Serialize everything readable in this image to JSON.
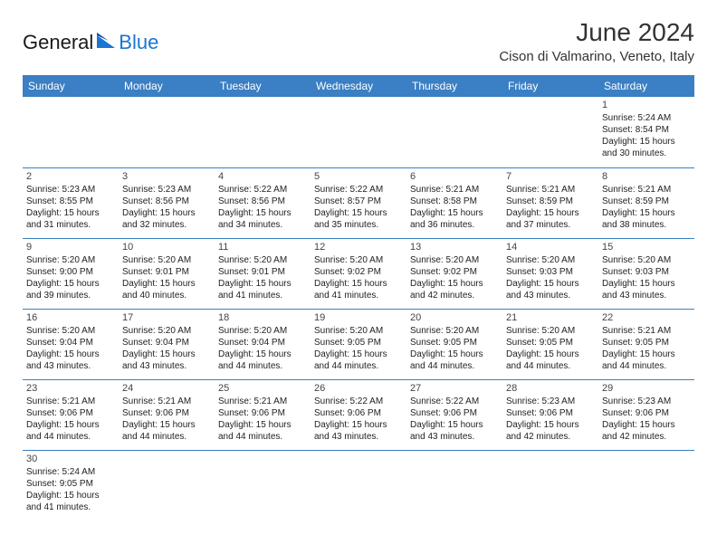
{
  "brand": {
    "name_part1": "General",
    "name_part2": "Blue",
    "color_text": "#1a1a1a",
    "color_blue": "#1976d2"
  },
  "header": {
    "title": "June 2024",
    "location": "Cison di Valmarino, Veneto, Italy"
  },
  "theme": {
    "header_bg": "#3b7fc4",
    "header_fg": "#ffffff",
    "border_color": "#3b7fc4",
    "body_bg": "#ffffff",
    "text_color": "#222222"
  },
  "daysOfWeek": [
    "Sunday",
    "Monday",
    "Tuesday",
    "Wednesday",
    "Thursday",
    "Friday",
    "Saturday"
  ],
  "calendar": {
    "type": "table",
    "columns": 7,
    "rows": 6,
    "cells": [
      [
        null,
        null,
        null,
        null,
        null,
        null,
        {
          "n": 1,
          "sr": "5:24 AM",
          "ss": "8:54 PM",
          "dh": 15,
          "dm": 30
        }
      ],
      [
        {
          "n": 2,
          "sr": "5:23 AM",
          "ss": "8:55 PM",
          "dh": 15,
          "dm": 31
        },
        {
          "n": 3,
          "sr": "5:23 AM",
          "ss": "8:56 PM",
          "dh": 15,
          "dm": 32
        },
        {
          "n": 4,
          "sr": "5:22 AM",
          "ss": "8:56 PM",
          "dh": 15,
          "dm": 34
        },
        {
          "n": 5,
          "sr": "5:22 AM",
          "ss": "8:57 PM",
          "dh": 15,
          "dm": 35
        },
        {
          "n": 6,
          "sr": "5:21 AM",
          "ss": "8:58 PM",
          "dh": 15,
          "dm": 36
        },
        {
          "n": 7,
          "sr": "5:21 AM",
          "ss": "8:59 PM",
          "dh": 15,
          "dm": 37
        },
        {
          "n": 8,
          "sr": "5:21 AM",
          "ss": "8:59 PM",
          "dh": 15,
          "dm": 38
        }
      ],
      [
        {
          "n": 9,
          "sr": "5:20 AM",
          "ss": "9:00 PM",
          "dh": 15,
          "dm": 39
        },
        {
          "n": 10,
          "sr": "5:20 AM",
          "ss": "9:01 PM",
          "dh": 15,
          "dm": 40
        },
        {
          "n": 11,
          "sr": "5:20 AM",
          "ss": "9:01 PM",
          "dh": 15,
          "dm": 41
        },
        {
          "n": 12,
          "sr": "5:20 AM",
          "ss": "9:02 PM",
          "dh": 15,
          "dm": 41
        },
        {
          "n": 13,
          "sr": "5:20 AM",
          "ss": "9:02 PM",
          "dh": 15,
          "dm": 42
        },
        {
          "n": 14,
          "sr": "5:20 AM",
          "ss": "9:03 PM",
          "dh": 15,
          "dm": 43
        },
        {
          "n": 15,
          "sr": "5:20 AM",
          "ss": "9:03 PM",
          "dh": 15,
          "dm": 43
        }
      ],
      [
        {
          "n": 16,
          "sr": "5:20 AM",
          "ss": "9:04 PM",
          "dh": 15,
          "dm": 43
        },
        {
          "n": 17,
          "sr": "5:20 AM",
          "ss": "9:04 PM",
          "dh": 15,
          "dm": 43
        },
        {
          "n": 18,
          "sr": "5:20 AM",
          "ss": "9:04 PM",
          "dh": 15,
          "dm": 44
        },
        {
          "n": 19,
          "sr": "5:20 AM",
          "ss": "9:05 PM",
          "dh": 15,
          "dm": 44
        },
        {
          "n": 20,
          "sr": "5:20 AM",
          "ss": "9:05 PM",
          "dh": 15,
          "dm": 44
        },
        {
          "n": 21,
          "sr": "5:20 AM",
          "ss": "9:05 PM",
          "dh": 15,
          "dm": 44
        },
        {
          "n": 22,
          "sr": "5:21 AM",
          "ss": "9:05 PM",
          "dh": 15,
          "dm": 44
        }
      ],
      [
        {
          "n": 23,
          "sr": "5:21 AM",
          "ss": "9:06 PM",
          "dh": 15,
          "dm": 44
        },
        {
          "n": 24,
          "sr": "5:21 AM",
          "ss": "9:06 PM",
          "dh": 15,
          "dm": 44
        },
        {
          "n": 25,
          "sr": "5:21 AM",
          "ss": "9:06 PM",
          "dh": 15,
          "dm": 44
        },
        {
          "n": 26,
          "sr": "5:22 AM",
          "ss": "9:06 PM",
          "dh": 15,
          "dm": 43
        },
        {
          "n": 27,
          "sr": "5:22 AM",
          "ss": "9:06 PM",
          "dh": 15,
          "dm": 43
        },
        {
          "n": 28,
          "sr": "5:23 AM",
          "ss": "9:06 PM",
          "dh": 15,
          "dm": 42
        },
        {
          "n": 29,
          "sr": "5:23 AM",
          "ss": "9:06 PM",
          "dh": 15,
          "dm": 42
        }
      ],
      [
        {
          "n": 30,
          "sr": "5:24 AM",
          "ss": "9:05 PM",
          "dh": 15,
          "dm": 41
        },
        null,
        null,
        null,
        null,
        null,
        null
      ]
    ]
  },
  "labels": {
    "sunrise": "Sunrise:",
    "sunset": "Sunset:",
    "daylight_prefix": "Daylight:",
    "hours_word": "hours",
    "and_word": "and",
    "minutes_word": "minutes."
  }
}
